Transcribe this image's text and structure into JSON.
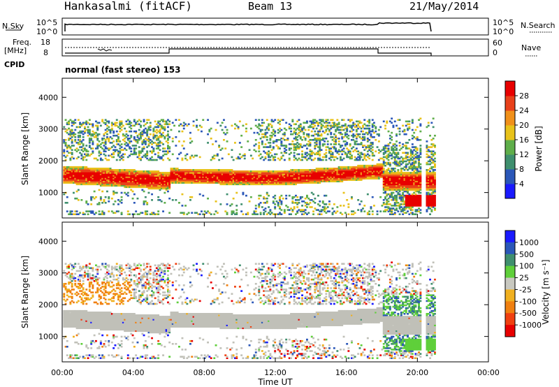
{
  "header": {
    "station": "Hankasalmi (fitACF)",
    "beam": "Beam 13",
    "date": "21/May/2014"
  },
  "noise_panel": {
    "left_label": "N.Sky",
    "left_top": "10^5",
    "left_bottom": "10^0",
    "right_label": "N.Search",
    "right_top": "10^5",
    "right_bottom": "10^0"
  },
  "freq_panel": {
    "left_label_1": "Freq.",
    "left_label_2": "[MHz]",
    "left_top": "18",
    "left_bottom": "8",
    "right_label": "Nave",
    "right_top": "60",
    "right_bottom": "0"
  },
  "cpid": {
    "label": "CPID",
    "text": "normal (fast stereo) 153"
  },
  "chart_data": [
    {
      "type": "heatmap",
      "name": "power",
      "ylabel": "Slant Range [km]",
      "xlabel": "",
      "yticks": [
        "1000",
        "2000",
        "3000",
        "4000"
      ],
      "ylim": [
        200,
        4600
      ],
      "xlim_hours": [
        0,
        24
      ],
      "colorbar": {
        "title": "Power [dB]",
        "ticks": [
          "4",
          "8",
          "12",
          "16",
          "20",
          "24",
          "28"
        ],
        "colors": [
          "#1a1aff",
          "#2b57b8",
          "#3f8f6e",
          "#5fae4a",
          "#e8c21a",
          "#f0901a",
          "#e8401a",
          "#e80000"
        ]
      },
      "bands": [
        {
          "t0": 0.0,
          "t1": 6.0,
          "r0": 1200,
          "r1": 1800,
          "level": 28
        },
        {
          "t0": 6.0,
          "t1": 18.0,
          "r0": 1300,
          "r1": 1800,
          "level": 24
        },
        {
          "t0": 18.0,
          "t1": 21.0,
          "r0": 1000,
          "r1": 1600,
          "level": 28
        }
      ]
    },
    {
      "type": "heatmap",
      "name": "velocity",
      "ylabel": "Slant Range [km]",
      "xlabel": "Time UT",
      "yticks": [
        "1000",
        "2000",
        "3000",
        "4000"
      ],
      "ylim": [
        200,
        4600
      ],
      "xticks": [
        "00:00",
        "04:00",
        "08:00",
        "12:00",
        "16:00",
        "20:00",
        "00:00"
      ],
      "colorbar": {
        "title": "Velocity [m s⁻¹]",
        "ticks": [
          "1000",
          "500",
          "100",
          "25",
          "-25",
          "-100",
          "-500",
          "-1000"
        ],
        "colors": [
          "#1a1aff",
          "#2b57b8",
          "#3f8f6e",
          "#5fcf3a",
          "#c8c8c0",
          "#f0b020",
          "#f08010",
          "#f04010",
          "#e80000"
        ]
      },
      "ground_scatter_color": "#c0c0b8"
    }
  ]
}
